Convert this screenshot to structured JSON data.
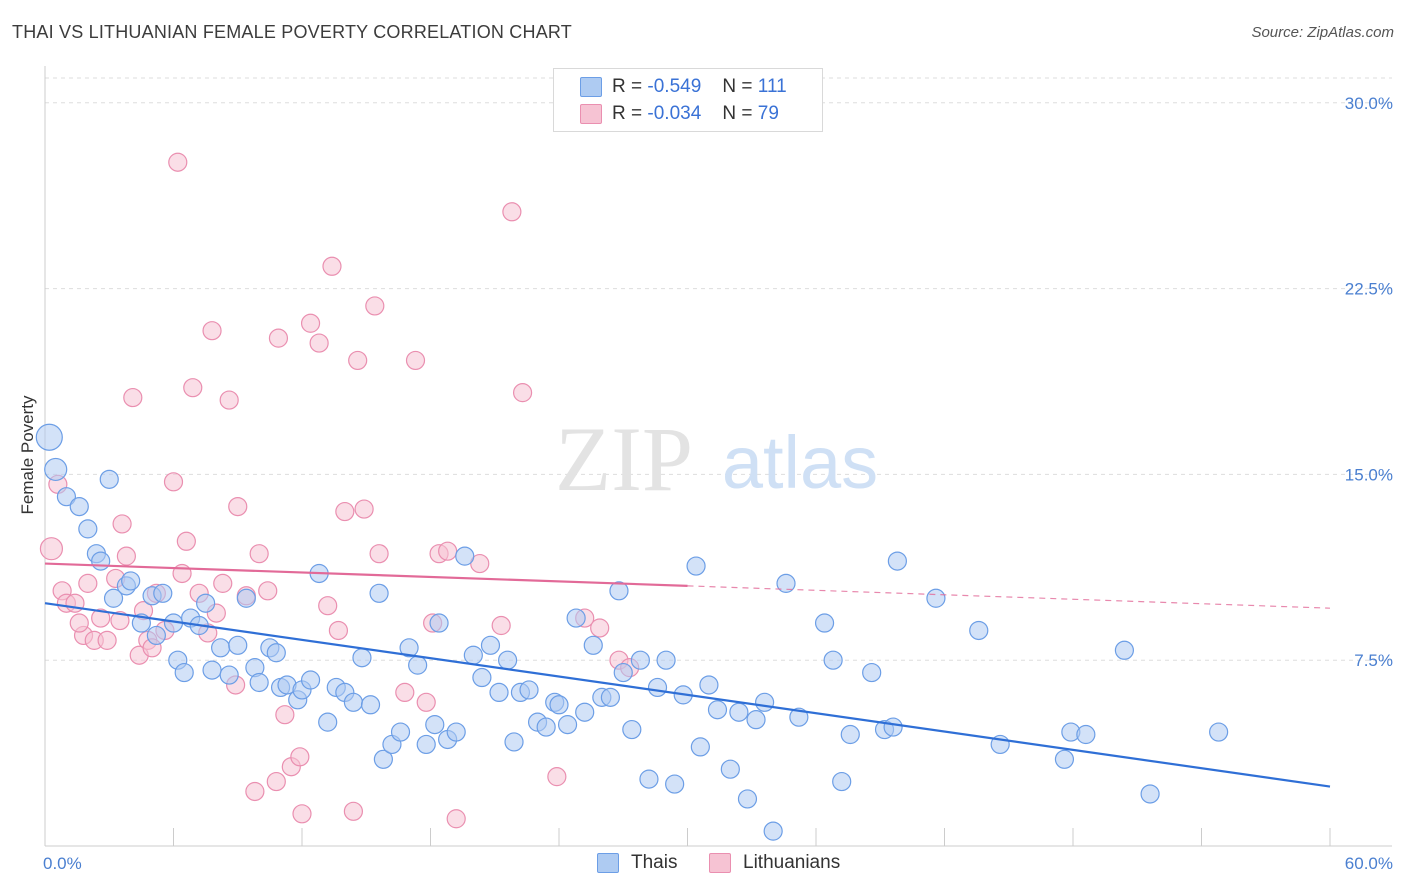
{
  "title": "THAI VS LITHUANIAN FEMALE POVERTY CORRELATION CHART",
  "source": "Source: ZipAtlas.com",
  "watermark": {
    "zip": "ZIP",
    "atlas": "atlas"
  },
  "legend_top": {
    "rows": [
      {
        "r_label": "R =",
        "r_value": "-0.549",
        "n_label": "N =",
        "n_value": "111"
      },
      {
        "r_label": "R =",
        "r_value": "-0.034",
        "n_label": "N =",
        "n_value": "79"
      }
    ]
  },
  "colors": {
    "blue_fill": "#aecbf2",
    "blue_stroke": "#6c9ee6",
    "blue_line": "#2f6fd6",
    "pink_fill": "#f6c3d3",
    "pink_stroke": "#ea8fb0",
    "pink_line": "#e26a98",
    "tick_text": "#4a7fd0",
    "grid": "#dddddd"
  },
  "chart_data": {
    "type": "scatter",
    "title": "THAI VS LITHUANIAN FEMALE POVERTY CORRELATION CHART",
    "xlabel": "",
    "ylabel": "Female Poverty",
    "xlim": [
      0,
      60
    ],
    "ylim": [
      0,
      31
    ],
    "x_tick_labels": [
      "0.0%",
      "60.0%"
    ],
    "y_ticks": [
      7.5,
      15.0,
      22.5,
      30.0
    ],
    "y_tick_labels": [
      "7.5%",
      "15.0%",
      "22.5%",
      "30.0%"
    ],
    "grid": "horizontal dashed",
    "legend_position": "top-center and bottom",
    "series": [
      {
        "name": "Thais",
        "color": "#6c9ee6",
        "r": -0.549,
        "n": 111,
        "trend": {
          "x": [
            0,
            60
          ],
          "y": [
            9.8,
            2.4
          ],
          "dashed_from": null
        },
        "points": [
          [
            0.2,
            16.5
          ],
          [
            0.5,
            15.2
          ],
          [
            1.0,
            14.1
          ],
          [
            1.6,
            13.7
          ],
          [
            3.0,
            14.8
          ],
          [
            2.0,
            12.8
          ],
          [
            2.4,
            11.8
          ],
          [
            2.6,
            11.5
          ],
          [
            3.2,
            10.0
          ],
          [
            3.8,
            10.5
          ],
          [
            4.0,
            10.7
          ],
          [
            4.5,
            9.0
          ],
          [
            5.0,
            10.1
          ],
          [
            5.2,
            8.5
          ],
          [
            5.5,
            10.2
          ],
          [
            6.0,
            9.0
          ],
          [
            6.2,
            7.5
          ],
          [
            6.5,
            7.0
          ],
          [
            6.8,
            9.2
          ],
          [
            7.2,
            8.9
          ],
          [
            7.5,
            9.8
          ],
          [
            7.8,
            7.1
          ],
          [
            8.2,
            8.0
          ],
          [
            8.6,
            6.9
          ],
          [
            9.0,
            8.1
          ],
          [
            9.4,
            10.0
          ],
          [
            9.8,
            7.2
          ],
          [
            10.0,
            6.6
          ],
          [
            10.5,
            8.0
          ],
          [
            10.8,
            7.8
          ],
          [
            11.0,
            6.4
          ],
          [
            11.3,
            6.5
          ],
          [
            11.8,
            5.9
          ],
          [
            12.0,
            6.3
          ],
          [
            12.4,
            6.7
          ],
          [
            12.8,
            11.0
          ],
          [
            13.2,
            5.0
          ],
          [
            13.6,
            6.4
          ],
          [
            14.0,
            6.2
          ],
          [
            14.4,
            5.8
          ],
          [
            14.8,
            7.6
          ],
          [
            15.2,
            5.7
          ],
          [
            15.6,
            10.2
          ],
          [
            15.8,
            3.5
          ],
          [
            16.2,
            4.1
          ],
          [
            16.6,
            4.6
          ],
          [
            17.0,
            8.0
          ],
          [
            17.4,
            7.3
          ],
          [
            17.8,
            4.1
          ],
          [
            18.2,
            4.9
          ],
          [
            18.4,
            9.0
          ],
          [
            18.8,
            4.3
          ],
          [
            19.2,
            4.6
          ],
          [
            19.6,
            11.7
          ],
          [
            20.0,
            7.7
          ],
          [
            20.4,
            6.8
          ],
          [
            20.8,
            8.1
          ],
          [
            21.2,
            6.2
          ],
          [
            21.6,
            7.5
          ],
          [
            21.9,
            4.2
          ],
          [
            22.2,
            6.2
          ],
          [
            22.6,
            6.3
          ],
          [
            23.0,
            5.0
          ],
          [
            23.4,
            4.8
          ],
          [
            23.8,
            5.8
          ],
          [
            24.0,
            5.7
          ],
          [
            24.4,
            4.9
          ],
          [
            24.8,
            9.2
          ],
          [
            25.2,
            5.4
          ],
          [
            25.6,
            8.1
          ],
          [
            26.0,
            6.0
          ],
          [
            26.4,
            6.0
          ],
          [
            26.8,
            10.3
          ],
          [
            27.0,
            7.0
          ],
          [
            27.4,
            4.7
          ],
          [
            27.8,
            7.5
          ],
          [
            28.2,
            2.7
          ],
          [
            28.6,
            6.4
          ],
          [
            29.0,
            7.5
          ],
          [
            29.4,
            2.5
          ],
          [
            29.8,
            6.1
          ],
          [
            30.4,
            11.3
          ],
          [
            30.6,
            4.0
          ],
          [
            31.0,
            6.5
          ],
          [
            31.4,
            5.5
          ],
          [
            32.0,
            3.1
          ],
          [
            32.4,
            5.4
          ],
          [
            32.8,
            1.9
          ],
          [
            33.2,
            5.1
          ],
          [
            33.6,
            5.8
          ],
          [
            34.0,
            0.6
          ],
          [
            34.6,
            10.6
          ],
          [
            35.2,
            5.2
          ],
          [
            36.4,
            9.0
          ],
          [
            36.8,
            7.5
          ],
          [
            37.2,
            2.6
          ],
          [
            37.6,
            4.5
          ],
          [
            38.6,
            7.0
          ],
          [
            39.2,
            4.7
          ],
          [
            39.6,
            4.8
          ],
          [
            39.8,
            11.5
          ],
          [
            41.6,
            10.0
          ],
          [
            43.6,
            8.7
          ],
          [
            44.6,
            4.1
          ],
          [
            47.6,
            3.5
          ],
          [
            47.9,
            4.6
          ],
          [
            48.6,
            4.5
          ],
          [
            50.4,
            7.9
          ],
          [
            51.6,
            2.1
          ],
          [
            54.8,
            4.6
          ]
        ]
      },
      {
        "name": "Lithuanians",
        "color": "#ea8fb0",
        "r": -0.034,
        "n": 79,
        "trend": {
          "x": [
            0,
            60
          ],
          "y": [
            11.4,
            9.6
          ],
          "dashed_from": 30
        },
        "points": [
          [
            0.3,
            12.0
          ],
          [
            0.6,
            14.6
          ],
          [
            0.8,
            10.3
          ],
          [
            1.0,
            9.8
          ],
          [
            1.4,
            9.8
          ],
          [
            1.8,
            8.5
          ],
          [
            1.6,
            9.0
          ],
          [
            2.0,
            10.6
          ],
          [
            2.3,
            8.3
          ],
          [
            2.6,
            9.2
          ],
          [
            2.9,
            8.3
          ],
          [
            3.3,
            10.8
          ],
          [
            3.5,
            9.1
          ],
          [
            3.6,
            13.0
          ],
          [
            3.8,
            11.7
          ],
          [
            4.1,
            18.1
          ],
          [
            4.4,
            7.7
          ],
          [
            4.6,
            9.5
          ],
          [
            4.8,
            8.3
          ],
          [
            5.0,
            8.0
          ],
          [
            5.2,
            10.2
          ],
          [
            5.6,
            8.7
          ],
          [
            6.0,
            14.7
          ],
          [
            6.4,
            11.0
          ],
          [
            6.6,
            12.3
          ],
          [
            6.9,
            18.5
          ],
          [
            7.2,
            10.2
          ],
          [
            7.6,
            8.6
          ],
          [
            7.8,
            20.8
          ],
          [
            8.0,
            9.4
          ],
          [
            8.3,
            10.6
          ],
          [
            8.6,
            18.0
          ],
          [
            8.9,
            6.5
          ],
          [
            9.0,
            13.7
          ],
          [
            9.4,
            10.1
          ],
          [
            9.8,
            2.2
          ],
          [
            10.0,
            11.8
          ],
          [
            10.4,
            10.3
          ],
          [
            10.8,
            2.6
          ],
          [
            10.9,
            20.5
          ],
          [
            11.2,
            5.3
          ],
          [
            11.5,
            3.2
          ],
          [
            11.9,
            3.6
          ],
          [
            12.0,
            1.3
          ],
          [
            12.4,
            21.1
          ],
          [
            12.8,
            20.3
          ],
          [
            13.2,
            9.7
          ],
          [
            13.4,
            23.4
          ],
          [
            13.7,
            8.7
          ],
          [
            14.0,
            13.5
          ],
          [
            14.4,
            1.4
          ],
          [
            14.6,
            19.6
          ],
          [
            14.9,
            13.6
          ],
          [
            15.4,
            21.8
          ],
          [
            15.6,
            11.8
          ],
          [
            16.8,
            6.2
          ],
          [
            17.3,
            19.6
          ],
          [
            17.8,
            5.8
          ],
          [
            18.1,
            9.0
          ],
          [
            18.4,
            11.8
          ],
          [
            18.8,
            11.9
          ],
          [
            19.2,
            1.1
          ],
          [
            20.3,
            11.4
          ],
          [
            21.3,
            8.9
          ],
          [
            21.8,
            25.6
          ],
          [
            22.3,
            18.3
          ],
          [
            23.9,
            2.8
          ],
          [
            25.2,
            9.2
          ],
          [
            25.9,
            8.8
          ],
          [
            26.8,
            7.5
          ],
          [
            27.3,
            7.2
          ],
          [
            6.2,
            27.6
          ]
        ]
      }
    ]
  },
  "bottom_legend": {
    "items": [
      {
        "label": "Thais"
      },
      {
        "label": "Lithuanians"
      }
    ]
  }
}
